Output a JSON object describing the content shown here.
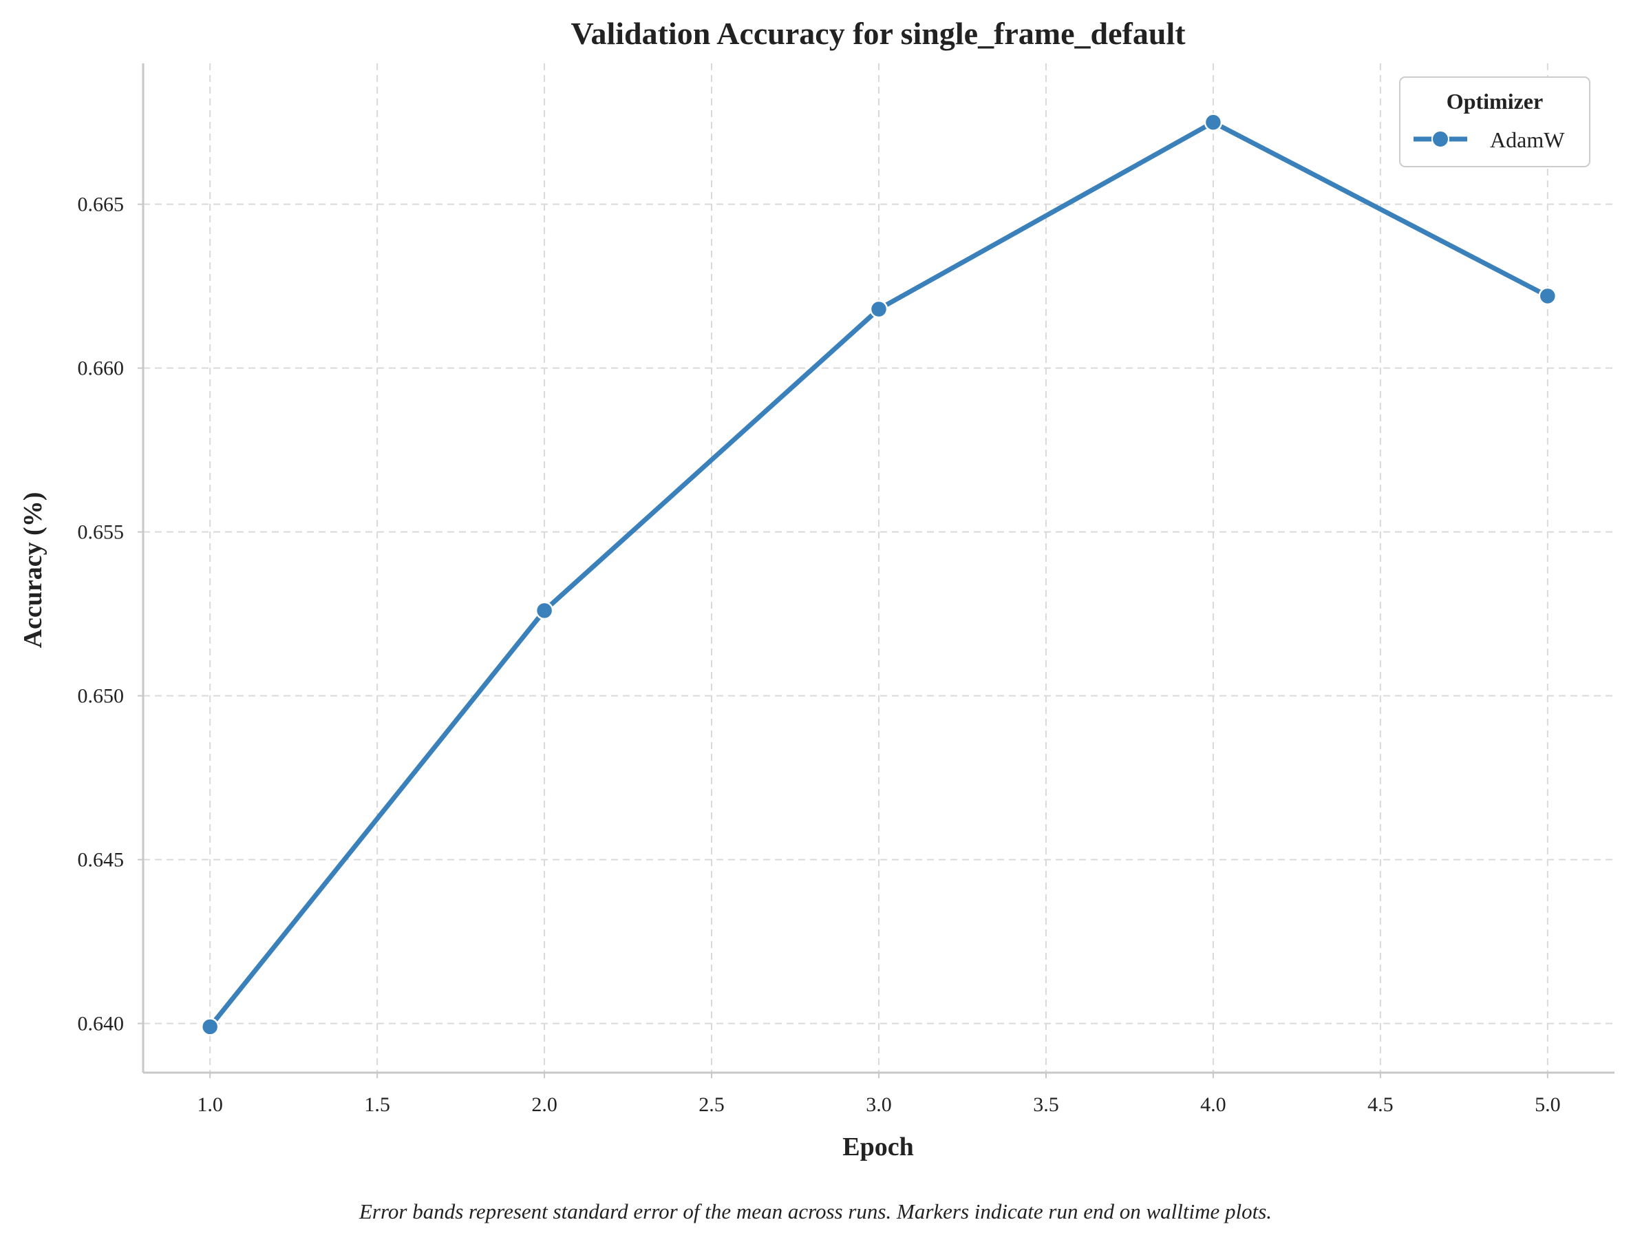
{
  "chart_data": {
    "type": "line",
    "title": "Validation Accuracy for single_frame_default",
    "xlabel": "Epoch",
    "ylabel": "Accuracy (%)",
    "xlim": [
      0.8,
      5.2
    ],
    "ylim": [
      0.6385,
      0.6693
    ],
    "xticks": [
      1.0,
      1.5,
      2.0,
      2.5,
      3.0,
      3.5,
      4.0,
      4.5,
      5.0
    ],
    "xtick_labels": [
      "1.0",
      "1.5",
      "2.0",
      "2.5",
      "3.0",
      "3.5",
      "4.0",
      "4.5",
      "5.0"
    ],
    "yticks": [
      0.64,
      0.645,
      0.65,
      0.655,
      0.66,
      0.665
    ],
    "ytick_labels": [
      "0.640",
      "0.645",
      "0.650",
      "0.655",
      "0.660",
      "0.665"
    ],
    "grid": true,
    "legend": {
      "title": "Optimizer",
      "placement": "top-right"
    },
    "series": [
      {
        "name": "AdamW",
        "color": "#3a80ba",
        "x": [
          1.0,
          2.0,
          3.0,
          4.0,
          5.0
        ],
        "y": [
          0.6399,
          0.6526,
          0.6618,
          0.6675,
          0.6622
        ]
      }
    ]
  },
  "caption": "Error bands represent standard error of the mean across runs. Markers indicate run end on walltime plots."
}
